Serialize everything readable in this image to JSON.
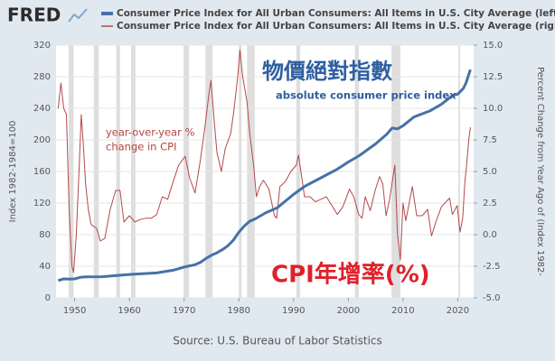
{
  "logo": "FRED",
  "chart_data": {
    "type": "line",
    "series": [
      {
        "name": "Consumer Price Index for All Urban Consumers: All Items in U.S. City Average (left)",
        "color": "#4572a7",
        "axis": "y",
        "x": [
          1947,
          1948,
          1949,
          1950,
          1951,
          1952,
          1955,
          1960,
          1965,
          1968,
          1970,
          1972,
          1973,
          1974,
          1975,
          1976,
          1977,
          1978,
          1979,
          1980,
          1981,
          1982,
          1983,
          1985,
          1987,
          1990,
          1992,
          1995,
          1998,
          2000,
          2002,
          2005,
          2007,
          2008,
          2009,
          2010,
          2012,
          2015,
          2017,
          2019,
          2020,
          2021,
          2021.5,
          2022.3
        ],
        "values": [
          22,
          24,
          23.8,
          24,
          26,
          26.5,
          26.8,
          29.6,
          31.5,
          35,
          39,
          42,
          45,
          50,
          54,
          57,
          61,
          66,
          73,
          83,
          91,
          97,
          100,
          108,
          114,
          131,
          141,
          152,
          163,
          172,
          180,
          195,
          207,
          215,
          214,
          218,
          229,
          237,
          245,
          256,
          258,
          265,
          272,
          289
        ]
      },
      {
        "name": "Consumer Price Index for All Urban Consumers: All Items in U.S. City Average (right)",
        "color": "#b5484b",
        "axis": "y2",
        "x": [
          1947,
          1947.5,
          1948,
          1948.5,
          1949,
          1949.5,
          1949.8,
          1950.3,
          1950.8,
          1951.2,
          1951.6,
          1952,
          1952.5,
          1953,
          1954,
          1954.7,
          1955.5,
          1956.5,
          1957.5,
          1958.3,
          1959,
          1960,
          1961,
          1962,
          1963,
          1964,
          1965,
          1966,
          1967,
          1968,
          1969,
          1970.2,
          1971,
          1972,
          1973,
          1973.8,
          1974.5,
          1974.9,
          1975.5,
          1976,
          1976.8,
          1977.5,
          1978.5,
          1979,
          1979.8,
          1980.2,
          1980.7,
          1981.5,
          1982,
          1982.7,
          1983.2,
          1983.8,
          1984.5,
          1985.5,
          1986.5,
          1986.9,
          1987.5,
          1988.5,
          1989.5,
          1990.5,
          1990.9,
          1991.5,
          1992,
          1993,
          1994,
          1995,
          1996,
          1997,
          1998,
          1999,
          2000.2,
          2001,
          2001.9,
          2002.5,
          2003.1,
          2004,
          2004.9,
          2005.7,
          2006.3,
          2006.9,
          2007.5,
          2008.5,
          2009,
          2009.5,
          2010,
          2010.5,
          2011.7,
          2012.5,
          2013.5,
          2014.5,
          2015.2,
          2016,
          2017,
          2018.5,
          2019,
          2019.9,
          2020.4,
          2020.9,
          2021.3,
          2021.6,
          2022,
          2022.3
        ],
        "values": [
          10,
          12,
          10,
          9.5,
          2,
          -2.5,
          -3,
          0,
          5,
          9.5,
          7,
          4,
          2,
          0.8,
          0.5,
          -0.5,
          -0.3,
          2,
          3.5,
          3.5,
          1,
          1.5,
          1,
          1.2,
          1.3,
          1.3,
          1.6,
          3,
          2.8,
          4.2,
          5.5,
          6.2,
          4.5,
          3.3,
          6,
          8.5,
          11,
          12.2,
          9,
          6.5,
          5,
          6.8,
          8,
          9.5,
          12.5,
          14.6,
          12.5,
          10.5,
          8,
          5.5,
          3,
          3.8,
          4.3,
          3.6,
          1.5,
          1.3,
          3.8,
          4.2,
          5,
          5.5,
          6.3,
          4.5,
          3,
          3,
          2.6,
          2.8,
          3,
          2.3,
          1.6,
          2.2,
          3.6,
          3,
          1.6,
          1.3,
          3,
          1.9,
          3.5,
          4.6,
          4,
          1.5,
          2.7,
          5.5,
          0,
          -2,
          2.5,
          1.1,
          3.8,
          1.5,
          1.5,
          2,
          -0.1,
          1,
          2.2,
          2.9,
          1.6,
          2.3,
          0.2,
          1.3,
          4.2,
          5.4,
          7.5,
          8.5
        ]
      }
    ],
    "recessions": [
      [
        1948.9,
        1949.8
      ],
      [
        1953.5,
        1954.4
      ],
      [
        1957.6,
        1958.3
      ],
      [
        1960.3,
        1961.1
      ],
      [
        1969.9,
        1970.9
      ],
      [
        1973.9,
        1975.2
      ],
      [
        1980.0,
        1980.5
      ],
      [
        1981.5,
        1982.9
      ],
      [
        1990.5,
        1991.2
      ],
      [
        2001.2,
        2001.9
      ],
      [
        2007.9,
        2009.5
      ],
      [
        2020.1,
        2020.4
      ]
    ],
    "xlim": [
      1946.6,
      2022.9
    ],
    "xticks": [
      1950,
      1960,
      1970,
      1980,
      1990,
      2000,
      2010,
      2020
    ],
    "ylim": [
      0,
      320
    ],
    "yticks": [
      0,
      40,
      80,
      120,
      160,
      200,
      240,
      280,
      320
    ],
    "y2lim": [
      -5,
      15
    ],
    "y2ticks": [
      {
        "value": -5,
        "label": "-5.0"
      },
      -2.5,
      {
        "value": 0,
        "label": "0.0"
      },
      2.5,
      {
        "value": 5,
        "label": "5.0"
      },
      7.5,
      {
        "value": 10,
        "label": "10.0"
      },
      12.5,
      {
        "value": 15,
        "label": "15.0"
      }
    ],
    "ylabel": "Index 1982-1984=100",
    "y2label": "Percent Change from Year Ago of (Index 1982-",
    "grid": true,
    "annotations": [
      "物價絕對指數",
      "absolute consumer price index",
      "year-over-year %",
      "change in CPI",
      "CPI年增率(%)"
    ],
    "source": "Source: U.S. Bureau of Labor Statistics"
  }
}
